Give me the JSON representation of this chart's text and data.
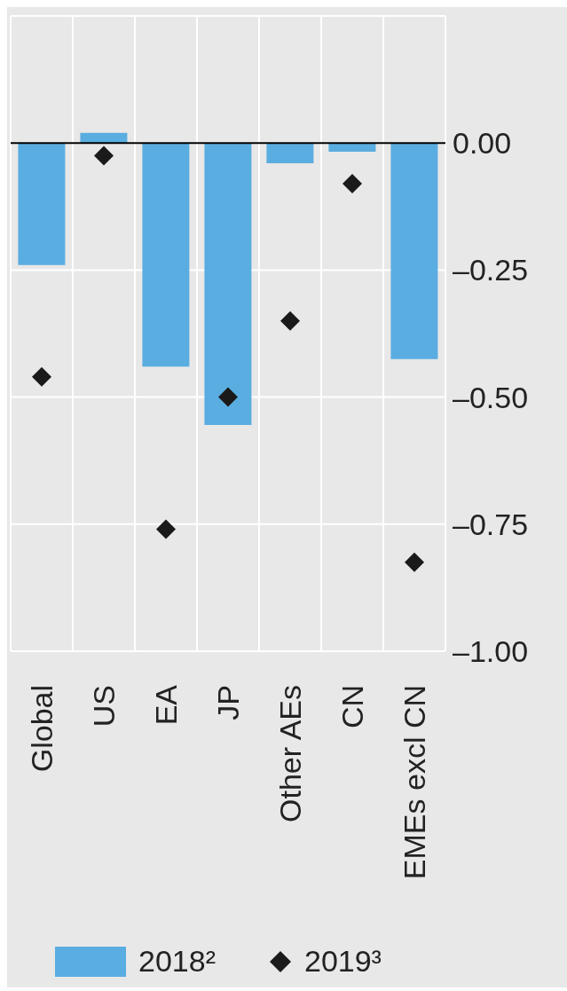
{
  "chart_data": {
    "type": "bar",
    "categories": [
      "Global",
      "US",
      "EA",
      "JP",
      "Other AEs",
      "CN",
      "EMEs excl CN"
    ],
    "series": [
      {
        "name": "2018²",
        "color": "#5aade0",
        "values": [
          -0.24,
          0.02,
          -0.44,
          -0.555,
          -0.04,
          -0.017,
          -0.425
        ]
      },
      {
        "name": "2019³",
        "type": "scatter",
        "marker": "diamond",
        "color": "#1a1a1a",
        "values": [
          -0.46,
          -0.025,
          -0.76,
          -0.5,
          -0.35,
          -0.08,
          -0.825
        ]
      }
    ],
    "ylim": [
      -1,
      0.25
    ],
    "yticks": [
      {
        "value": 0,
        "label": "0.00"
      },
      {
        "value": -0.25,
        "label": "–0.25"
      },
      {
        "value": -0.5,
        "label": "–0.50"
      },
      {
        "value": -0.75,
        "label": "–0.75"
      },
      {
        "value": -1,
        "label": "–1.00"
      }
    ],
    "ref_lines": [
      {
        "axis": "y",
        "value": 0,
        "color": "#000000"
      }
    ],
    "grid": true,
    "legend": "bottom"
  }
}
